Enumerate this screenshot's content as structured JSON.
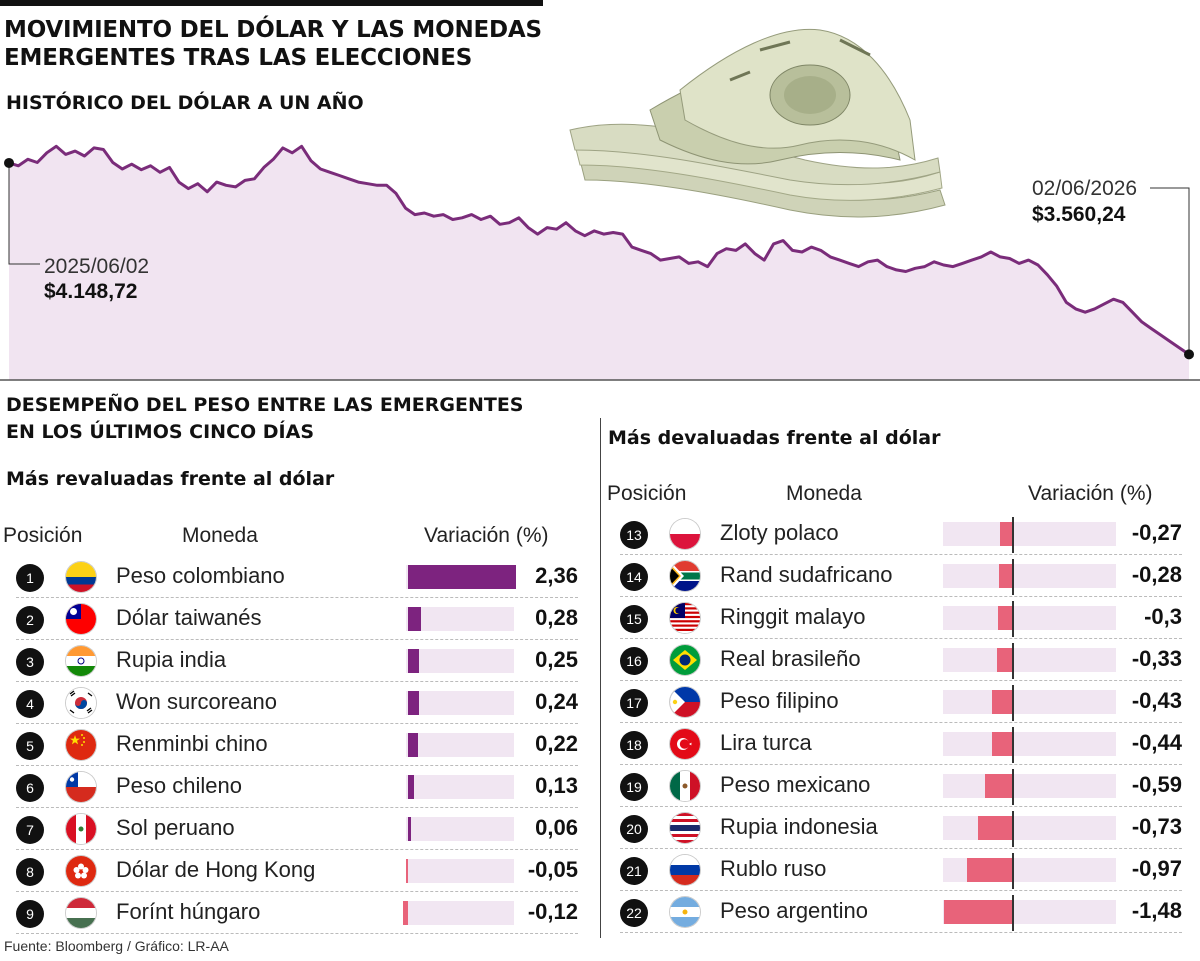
{
  "header": {
    "title_line1": "MOVIMIENTO DEL DÓLAR Y LAS MONEDAS",
    "title_line2": "EMERGENTES TRAS LAS ELECCIONES",
    "subtitle": "HISTÓRICO DEL DÓLAR A UN AÑO"
  },
  "colors": {
    "line": "#7a2c7a",
    "area": "#f1e4f1",
    "positive_bar": "#7d237f",
    "negative_bar": "#e8637a",
    "track": "#f1e6f2"
  },
  "chart_data": [
    {
      "type": "line",
      "title": "HISTÓRICO DEL DÓLAR A UN AÑO",
      "start": {
        "date": "2025/06/02",
        "value": "$4.148,72"
      },
      "end": {
        "date": "02/06/2026",
        "value": "$3.560,24"
      },
      "ylim": [
        3500,
        4250
      ],
      "values": [
        4148.72,
        4140,
        4160,
        4150,
        4180,
        4200,
        4175,
        4185,
        4170,
        4195,
        4190,
        4150,
        4130,
        4145,
        4128,
        4140,
        4120,
        4135,
        4090,
        4070,
        4085,
        4060,
        4090,
        4080,
        4075,
        4095,
        4100,
        4135,
        4160,
        4195,
        4180,
        4200,
        4155,
        4130,
        4120,
        4110,
        4100,
        4090,
        4085,
        4080,
        4080,
        4055,
        4010,
        3990,
        3995,
        3985,
        3990,
        3975,
        3980,
        3990,
        3975,
        3985,
        3960,
        3965,
        3980,
        3950,
        3930,
        3950,
        3945,
        3965,
        3940,
        3925,
        3940,
        3930,
        3935,
        3930,
        3890,
        3880,
        3870,
        3850,
        3855,
        3860,
        3840,
        3845,
        3830,
        3870,
        3885,
        3880,
        3900,
        3870,
        3850,
        3900,
        3910,
        3880,
        3875,
        3890,
        3880,
        3860,
        3850,
        3840,
        3830,
        3845,
        3850,
        3830,
        3820,
        3815,
        3825,
        3830,
        3845,
        3835,
        3830,
        3840,
        3850,
        3860,
        3875,
        3860,
        3855,
        3840,
        3850,
        3835,
        3805,
        3770,
        3720,
        3700,
        3690,
        3700,
        3715,
        3730,
        3720,
        3690,
        3660,
        3640,
        3620,
        3600,
        3580,
        3560.24
      ],
      "label_values": [
        "2025/06/02",
        "$4.148,72",
        "02/06/2026",
        "$3.560,24"
      ]
    },
    {
      "type": "bar",
      "title": "Más revaluadas frente al dólar",
      "categories": [
        "Peso colombiano",
        "Dólar taiwanés",
        "Rupia india",
        "Won surcoreano",
        "Renminbi chino",
        "Peso chileno",
        "Sol peruano",
        "Dólar de Hong Kong",
        "Forínt húngaro"
      ],
      "values": [
        2.36,
        0.28,
        0.25,
        0.24,
        0.22,
        0.13,
        0.06,
        -0.05,
        -0.12
      ]
    },
    {
      "type": "bar",
      "title": "Más devaluadas frente al dólar",
      "categories": [
        "Zloty polaco",
        "Rand sudafricano",
        "Ringgit malayo",
        "Real brasileño",
        "Peso filipino",
        "Lira turca",
        "Peso mexicano",
        "Rupia indonesia",
        "Rublo ruso",
        "Peso argentino"
      ],
      "values": [
        -0.27,
        -0.28,
        -0.3,
        -0.33,
        -0.43,
        -0.44,
        -0.59,
        -0.73,
        -0.97,
        -1.48
      ]
    }
  ],
  "section2": {
    "title_line1": "DESEMPEÑO DEL PESO ENTRE LAS EMERGENTES",
    "title_line2": "EN LOS ÚLTIMOS CINCO DÍAS"
  },
  "columns": {
    "position": "Posición",
    "currency": "Moneda",
    "change": "Variación (%)"
  },
  "left_table": {
    "heading": "Más revaluadas frente al dólar",
    "rows": [
      {
        "rank": "1",
        "flag": "colombia-flag-icon",
        "name": "Peso colombiano",
        "value": 2.36,
        "value_text": "2,36"
      },
      {
        "rank": "2",
        "flag": "taiwan-flag-icon",
        "name": "Dólar taiwanés",
        "value": 0.28,
        "value_text": "0,28"
      },
      {
        "rank": "3",
        "flag": "india-flag-icon",
        "name": "Rupia india",
        "value": 0.25,
        "value_text": "0,25"
      },
      {
        "rank": "4",
        "flag": "south-korea-flag-icon",
        "name": "Won surcoreano",
        "value": 0.24,
        "value_text": "0,24"
      },
      {
        "rank": "5",
        "flag": "china-flag-icon",
        "name": "Renminbi chino",
        "value": 0.22,
        "value_text": "0,22"
      },
      {
        "rank": "6",
        "flag": "chile-flag-icon",
        "name": "Peso chileno",
        "value": 0.13,
        "value_text": "0,13"
      },
      {
        "rank": "7",
        "flag": "peru-flag-icon",
        "name": "Sol peruano",
        "value": 0.06,
        "value_text": "0,06"
      },
      {
        "rank": "8",
        "flag": "hong-kong-flag-icon",
        "name": "Dólar de Hong Kong",
        "value": -0.05,
        "value_text": "-0,05"
      },
      {
        "rank": "9",
        "flag": "hungary-flag-icon",
        "name": "Forínt húngaro",
        "value": -0.12,
        "value_text": "-0,12"
      }
    ]
  },
  "right_table": {
    "heading": "Más devaluadas frente al dólar",
    "rows": [
      {
        "rank": "13",
        "flag": "poland-flag-icon",
        "name": "Zloty polaco",
        "value": -0.27,
        "value_text": "-0,27"
      },
      {
        "rank": "14",
        "flag": "south-africa-flag-icon",
        "name": "Rand sudafricano",
        "value": -0.28,
        "value_text": "-0,28"
      },
      {
        "rank": "15",
        "flag": "malaysia-flag-icon",
        "name": "Ringgit malayo",
        "value": -0.3,
        "value_text": "-0,3"
      },
      {
        "rank": "16",
        "flag": "brazil-flag-icon",
        "name": "Real brasileño",
        "value": -0.33,
        "value_text": "-0,33"
      },
      {
        "rank": "17",
        "flag": "philippines-flag-icon",
        "name": "Peso filipino",
        "value": -0.43,
        "value_text": "-0,43"
      },
      {
        "rank": "18",
        "flag": "turkey-flag-icon",
        "name": "Lira turca",
        "value": -0.44,
        "value_text": "-0,44"
      },
      {
        "rank": "19",
        "flag": "mexico-flag-icon",
        "name": "Peso mexicano",
        "value": -0.59,
        "value_text": "-0,59"
      },
      {
        "rank": "20",
        "flag": "indonesia-flag-icon",
        "name": "Rupia indonesia",
        "value": -0.73,
        "value_text": "-0,73"
      },
      {
        "rank": "21",
        "flag": "russia-flag-icon",
        "name": "Rublo ruso",
        "value": -0.97,
        "value_text": "-0,97"
      },
      {
        "rank": "22",
        "flag": "argentina-flag-icon",
        "name": "Peso argentino",
        "value": -1.48,
        "value_text": "-1,48"
      }
    ]
  },
  "source": "Fuente: Bloomberg / Gráfico: LR-AA"
}
